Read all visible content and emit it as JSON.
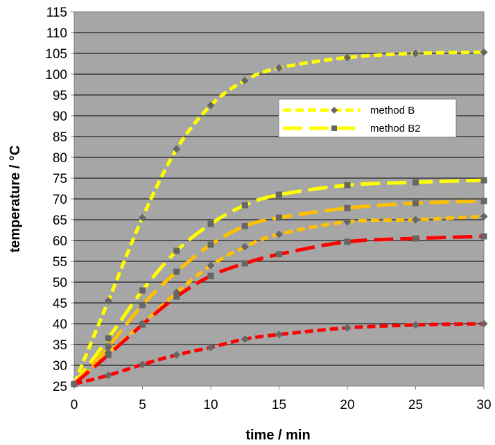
{
  "chart_data": {
    "type": "line",
    "xlabel": "time / min",
    "ylabel": "temperature / °C",
    "xlim": [
      0,
      30
    ],
    "ylim": [
      25,
      115
    ],
    "x_ticks": [
      0,
      5,
      10,
      15,
      20,
      25,
      30
    ],
    "y_ticks": [
      25,
      30,
      35,
      40,
      45,
      50,
      55,
      60,
      65,
      70,
      75,
      80,
      85,
      90,
      95,
      100,
      105,
      110,
      115
    ],
    "grid": true,
    "plot_background": "#a6a6a6",
    "marker_color": "#666666",
    "legend_position": "upper-right inside plot",
    "legend": [
      {
        "label": "method B",
        "color": "#ffff00",
        "dash": "short",
        "marker": "diamond"
      },
      {
        "label": "method B2",
        "color": "#ffff00",
        "dash": "long",
        "marker": "square"
      }
    ],
    "series": [
      {
        "color": "#ffff00",
        "dash": "short",
        "marker": "diamond",
        "x": [
          0,
          2.5,
          5,
          7.5,
          10,
          12.5,
          15,
          20,
          25,
          30
        ],
        "y": [
          25.5,
          45.5,
          65.5,
          82,
          92.5,
          98.5,
          101.5,
          104,
          105,
          105.3
        ]
      },
      {
        "color": "#ffff00",
        "dash": "long",
        "marker": "square",
        "x": [
          0,
          2.5,
          5,
          7.5,
          10,
          12.5,
          15,
          20,
          25,
          30
        ],
        "y": [
          25.5,
          36.5,
          48,
          57.5,
          64,
          68.5,
          71,
          73.3,
          74,
          74.5
        ]
      },
      {
        "color": "#ffc000",
        "dash": "long",
        "marker": "square",
        "x": [
          0,
          2.5,
          5,
          7.5,
          10,
          12.5,
          15,
          20,
          25,
          30
        ],
        "y": [
          25.5,
          34.5,
          44.5,
          52.5,
          59,
          63.5,
          65.5,
          67.8,
          69,
          69.5
        ]
      },
      {
        "color": "#ffc000",
        "dash": "short",
        "marker": "diamond",
        "x": [
          0,
          2.5,
          5,
          7.5,
          10,
          12.5,
          15,
          20,
          25,
          30
        ],
        "y": [
          25.5,
          33,
          40,
          47.5,
          54,
          58.5,
          61.5,
          64.5,
          65,
          65.8
        ]
      },
      {
        "color": "#ff0000",
        "dash": "long",
        "marker": "square",
        "x": [
          0,
          2.5,
          5,
          7.5,
          10,
          12.5,
          15,
          20,
          25,
          30
        ],
        "y": [
          25.5,
          32.5,
          39.8,
          46.5,
          51.5,
          54.5,
          56.7,
          59.7,
          60.5,
          61
        ]
      },
      {
        "color": "#ff0000",
        "dash": "short",
        "marker": "diamond",
        "x": [
          0,
          2.5,
          5,
          7.5,
          10,
          12.5,
          15,
          20,
          25,
          30
        ],
        "y": [
          25.5,
          27.6,
          30.2,
          32.5,
          34.3,
          36.3,
          37.4,
          39,
          39.7,
          40
        ]
      }
    ]
  }
}
